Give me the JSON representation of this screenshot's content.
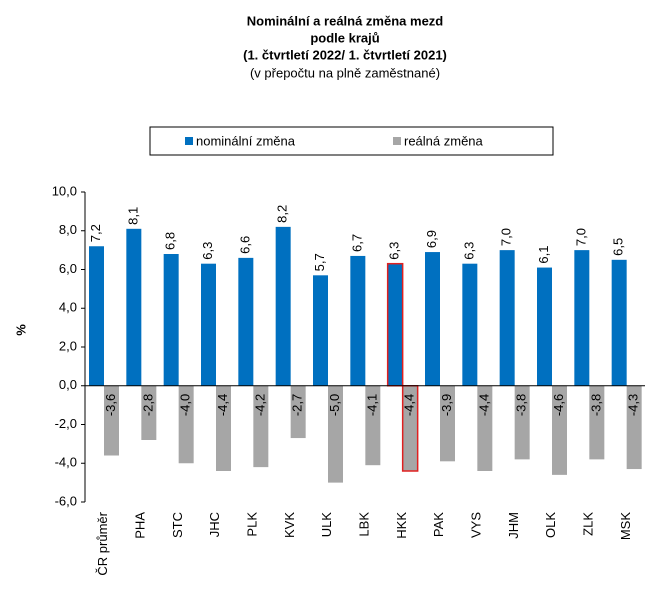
{
  "chart_data": {
    "type": "bar",
    "title": [
      "Nominální a reálná změna mezd",
      "podle krajů",
      "(1. čtvrtletí 2022/ 1. čtvrtletí 2021)"
    ],
    "subtitle": "(v přepočtu na plně zaměstnané)",
    "y_label": "%",
    "categories": [
      "ČR průměr",
      "PHA",
      "STC",
      "JHC",
      "PLK",
      "KVK",
      "ULK",
      "LBK",
      "HKK",
      "PAK",
      "VYS",
      "JHM",
      "OLK",
      "ZLK",
      "MSK"
    ],
    "series": [
      {
        "name": "nominální změna",
        "color": "#0070c0",
        "values": [
          7.2,
          8.1,
          6.8,
          6.3,
          6.6,
          8.2,
          5.7,
          6.7,
          6.3,
          6.9,
          6.3,
          7.0,
          6.1,
          7.0,
          6.5
        ],
        "value_labels": [
          "7,2",
          "8,1",
          "6,8",
          "6,3",
          "6,6",
          "8,2",
          "5,7",
          "6,7",
          "6,3",
          "6,9",
          "6,3",
          "7,0",
          "6,1",
          "7,0",
          "6,5"
        ]
      },
      {
        "name": "reálná změna",
        "color": "#a6a6a6",
        "values": [
          -3.6,
          -2.8,
          -4.0,
          -4.4,
          -4.2,
          -2.7,
          -5.0,
          -4.1,
          -4.4,
          -3.9,
          -4.4,
          -3.8,
          -4.6,
          -3.8,
          -4.3
        ],
        "value_labels": [
          "-3,6",
          "-2,8",
          "-4,0",
          "-4,4",
          "-4,2",
          "-2,7",
          "-5,0",
          "-4,1",
          "-4,4",
          "-3,9",
          "-4,4",
          "-3,8",
          "-4,6",
          "-3,8",
          "-4,3"
        ]
      }
    ],
    "ylim": [
      -6,
      10
    ],
    "yticks": [
      {
        "value": -6,
        "label": "-6,0"
      },
      {
        "value": -4,
        "label": "-4,0"
      },
      {
        "value": -2,
        "label": "-2,0"
      },
      {
        "value": 0,
        "label": "0,0"
      },
      {
        "value": 2,
        "label": "2,0"
      },
      {
        "value": 4,
        "label": "4,0"
      },
      {
        "value": 6,
        "label": "6,0"
      },
      {
        "value": 8,
        "label": "8,0"
      },
      {
        "value": 10,
        "label": "10,0"
      }
    ],
    "highlight": {
      "index": 8,
      "stroke": "#e02020"
    },
    "legend": "top"
  }
}
